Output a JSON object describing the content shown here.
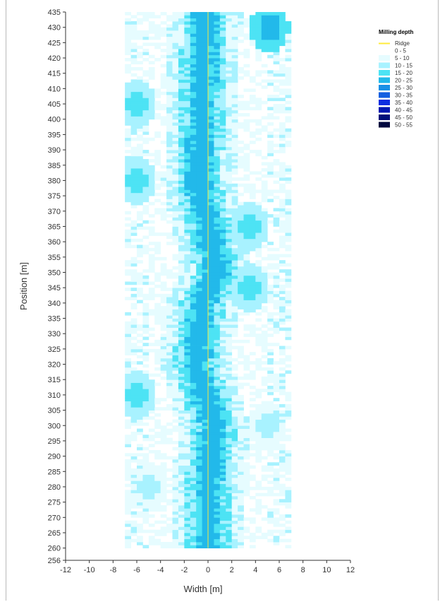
{
  "chart_data": {
    "type": "heatmap",
    "title": "",
    "xlabel": "Width [m]",
    "ylabel": "Position [m]",
    "xlim": [
      -12,
      12
    ],
    "ylim": [
      256,
      435
    ],
    "x_ticks": [
      -12,
      -10,
      -8,
      -6,
      -4,
      -2,
      0,
      2,
      4,
      6,
      8,
      10,
      12
    ],
    "y_ticks": [
      256,
      260,
      265,
      270,
      275,
      280,
      285,
      290,
      295,
      300,
      305,
      310,
      315,
      320,
      325,
      330,
      335,
      340,
      345,
      350,
      355,
      360,
      365,
      370,
      375,
      380,
      385,
      390,
      395,
      400,
      405,
      410,
      415,
      420,
      425,
      430,
      435
    ],
    "grid": false,
    "legend": {
      "title": "Milling depth",
      "placement": "top-right",
      "entries": [
        {
          "label": "Ridge",
          "color": "#ffeb3b",
          "kind": "line"
        },
        {
          "label": "0 - 5",
          "color": "#ffffff",
          "kind": "box"
        },
        {
          "label": "5 - 10",
          "color": "#e6fcff",
          "kind": "box"
        },
        {
          "label": "10 - 15",
          "color": "#a8f2ff",
          "kind": "box"
        },
        {
          "label": "15 - 20",
          "color": "#4de3f4",
          "kind": "box"
        },
        {
          "label": "20 - 25",
          "color": "#22b9ea",
          "kind": "box"
        },
        {
          "label": "25 - 30",
          "color": "#1990e6",
          "kind": "box"
        },
        {
          "label": "30 - 35",
          "color": "#145fe0",
          "kind": "box"
        },
        {
          "label": "35 - 40",
          "color": "#0a2ee0",
          "kind": "box"
        },
        {
          "label": "40 - 45",
          "color": "#0018b0",
          "kind": "box"
        },
        {
          "label": "45 - 50",
          "color": "#00107a",
          "kind": "box"
        },
        {
          "label": "50 - 55",
          "color": "#00083e",
          "kind": "box"
        }
      ]
    },
    "data_extent": {
      "x": [
        -7,
        7
      ],
      "y": [
        260,
        435
      ]
    },
    "ridge": {
      "x": 0,
      "y": [
        260,
        435
      ],
      "color": "#ffeb3b"
    },
    "trough_center_x": [
      {
        "y": 260,
        "x": 0.0
      },
      {
        "y": 280,
        "x": 0.0
      },
      {
        "y": 300,
        "x": 0.5
      },
      {
        "y": 320,
        "x": -1.0
      },
      {
        "y": 340,
        "x": -0.5
      },
      {
        "y": 350,
        "x": 0.8
      },
      {
        "y": 365,
        "x": 0.0
      },
      {
        "y": 380,
        "x": -0.8
      },
      {
        "y": 400,
        "x": -0.5
      },
      {
        "y": 420,
        "x": -0.4
      },
      {
        "y": 435,
        "x": -0.2
      }
    ],
    "trough_depth_class": "20 - 30",
    "side_features": [
      {
        "x": -6,
        "y": 405,
        "depth_class": "15 - 20"
      },
      {
        "x": -6,
        "y": 380,
        "depth_class": "15 - 20"
      },
      {
        "x": -6,
        "y": 310,
        "depth_class": "15 - 20"
      },
      {
        "x": 3.5,
        "y": 365,
        "depth_class": "15 - 20"
      },
      {
        "x": 3.5,
        "y": 345,
        "depth_class": "15 - 20"
      },
      {
        "x": 5.2,
        "y": 430,
        "depth_class": "20 - 25"
      },
      {
        "x": -5,
        "y": 280,
        "depth_class": "10 - 15"
      },
      {
        "x": 5,
        "y": 300,
        "depth_class": "10 - 15"
      }
    ]
  }
}
